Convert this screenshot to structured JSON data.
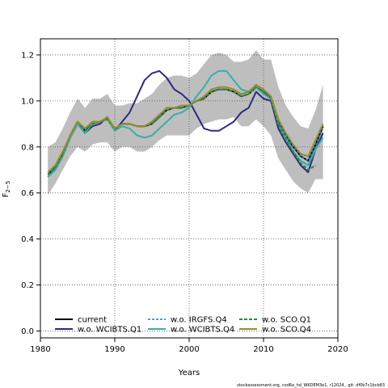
{
  "chart_data": {
    "type": "line",
    "xlabel": "Years",
    "ylabel": "F",
    "ylabel_sub": "2−5",
    "xlim": [
      1980,
      2020
    ],
    "ylim": [
      -0.03,
      1.27
    ],
    "x_ticks": [
      1980,
      1990,
      2000,
      2010,
      2020
    ],
    "y_ticks": [
      "0.0",
      "0.2",
      "0.4",
      "0.6",
      "0.8",
      "1.0",
      "1.2"
    ],
    "grid": true,
    "legend_position": "bottom-left, three columns",
    "footer": "stockassessment.org, cod6a_hd_WKDEM3e1, r12024 , git: df0b7c1bcb83",
    "band": {
      "x": [
        1981,
        1982,
        1983,
        1984,
        1985,
        1986,
        1987,
        1988,
        1989,
        1990,
        1991,
        1992,
        1993,
        1994,
        1995,
        1996,
        1997,
        1998,
        1999,
        2000,
        2001,
        2002,
        2003,
        2004,
        2005,
        2006,
        2007,
        2008,
        2009,
        2010,
        2011,
        2012,
        2013,
        2014,
        2015,
        2016,
        2017,
        2018
      ],
      "upper": [
        0.8,
        0.82,
        0.88,
        0.95,
        1.01,
        0.97,
        1.01,
        1.01,
        1.03,
        0.98,
        0.98,
        0.99,
        0.99,
        1.01,
        1.03,
        1.07,
        1.1,
        1.11,
        1.11,
        1.1,
        1.12,
        1.16,
        1.2,
        1.21,
        1.2,
        1.17,
        1.17,
        1.18,
        1.22,
        1.18,
        1.18,
        1.06,
        0.98,
        0.93,
        0.89,
        0.88,
        0.96,
        1.07
      ],
      "lower": [
        0.59,
        0.64,
        0.7,
        0.76,
        0.8,
        0.78,
        0.81,
        0.82,
        0.82,
        0.78,
        0.8,
        0.8,
        0.78,
        0.78,
        0.8,
        0.83,
        0.85,
        0.85,
        0.85,
        0.85,
        0.88,
        0.9,
        0.91,
        0.92,
        0.92,
        0.93,
        0.89,
        0.89,
        0.92,
        0.89,
        0.85,
        0.75,
        0.7,
        0.65,
        0.62,
        0.6,
        0.66,
        0.66
      ]
    },
    "series": [
      {
        "name": "current",
        "color": "#000000",
        "width": 2,
        "dash": "",
        "x": [
          1981,
          1982,
          1983,
          1984,
          1985,
          1986,
          1987,
          1988,
          1989,
          1990,
          1991,
          1992,
          1993,
          1994,
          1995,
          1996,
          1997,
          1998,
          1999,
          2000,
          2001,
          2002,
          2003,
          2004,
          2005,
          2006,
          2007,
          2008,
          2009,
          2010,
          2011,
          2012,
          2013,
          2014,
          2015,
          2016,
          2017,
          2018
        ],
        "values": [
          0.68,
          0.71,
          0.77,
          0.85,
          0.91,
          0.87,
          0.9,
          0.91,
          0.92,
          0.88,
          0.9,
          0.9,
          0.89,
          0.89,
          0.9,
          0.93,
          0.96,
          0.97,
          0.97,
          0.98,
          1.0,
          1.01,
          1.04,
          1.05,
          1.05,
          1.04,
          1.02,
          1.03,
          1.06,
          1.04,
          1.01,
          0.91,
          0.85,
          0.8,
          0.76,
          0.74,
          0.81,
          0.89
        ]
      },
      {
        "name": "w.o. WCIBTS.Q1",
        "color": "#2b2a84",
        "width": 2,
        "dash": "",
        "x": [
          1981,
          1982,
          1983,
          1984,
          1985,
          1986,
          1987,
          1988,
          1989,
          1990,
          1991,
          1992,
          1993,
          1994,
          1995,
          1996,
          1997,
          1998,
          1999,
          2000,
          2001,
          2002,
          2003,
          2004,
          2005,
          2006,
          2007,
          2008,
          2009,
          2010,
          2011,
          2012,
          2013,
          2014,
          2015,
          2016,
          2017,
          2018
        ],
        "values": [
          0.67,
          0.7,
          0.76,
          0.84,
          0.9,
          0.86,
          0.89,
          0.9,
          0.93,
          0.87,
          0.91,
          0.95,
          1.02,
          1.09,
          1.12,
          1.13,
          1.1,
          1.05,
          1.03,
          1.0,
          0.94,
          0.88,
          0.87,
          0.87,
          0.89,
          0.91,
          0.95,
          0.97,
          1.04,
          1.01,
          1.0,
          0.88,
          0.82,
          0.77,
          0.72,
          0.69,
          0.79,
          0.86
        ]
      },
      {
        "name": "w.o. IRGFS.Q4",
        "color": "#2c72c0",
        "width": 1.5,
        "dash": "3,2",
        "x": [
          1981,
          1982,
          1983,
          1984,
          1985,
          1986,
          1987,
          1988,
          1989,
          1990,
          1991,
          1992,
          1993,
          1994,
          1995,
          1996,
          1997,
          1998,
          1999,
          2000,
          2001,
          2002,
          2003,
          2004,
          2005,
          2006,
          2007,
          2008,
          2009,
          2010,
          2011,
          2012,
          2013,
          2014,
          2015,
          2016,
          2017,
          2018
        ],
        "values": [
          0.68,
          0.71,
          0.77,
          0.85,
          0.91,
          0.87,
          0.9,
          0.91,
          0.92,
          0.88,
          0.9,
          0.9,
          0.89,
          0.89,
          0.9,
          0.93,
          0.96,
          0.97,
          0.97,
          0.98,
          1.0,
          1.01,
          1.04,
          1.05,
          1.05,
          1.04,
          1.02,
          1.03,
          1.06,
          1.04,
          1.01,
          0.91,
          0.85,
          0.8,
          0.76,
          0.74,
          0.81,
          0.89
        ]
      },
      {
        "name": "w.o. WCIBTS.Q4",
        "color": "#35b0a6",
        "width": 2,
        "dash": "",
        "x": [
          1981,
          1982,
          1983,
          1984,
          1985,
          1986,
          1987,
          1988,
          1989,
          1990,
          1991,
          1992,
          1993,
          1994,
          1995,
          1996,
          1997,
          1998,
          1999,
          2000,
          2001,
          2002,
          2003,
          2004,
          2005,
          2006,
          2007,
          2008,
          2009,
          2010,
          2011,
          2012,
          2013,
          2014,
          2015,
          2016,
          2017,
          2018
        ],
        "values": [
          0.67,
          0.7,
          0.76,
          0.84,
          0.9,
          0.86,
          0.9,
          0.91,
          0.92,
          0.87,
          0.89,
          0.88,
          0.85,
          0.84,
          0.85,
          0.88,
          0.91,
          0.94,
          0.95,
          0.97,
          1.02,
          1.06,
          1.11,
          1.13,
          1.13,
          1.09,
          1.05,
          1.04,
          1.06,
          1.03,
          1.01,
          0.9,
          0.84,
          0.78,
          0.74,
          0.72,
          0.79,
          0.84
        ]
      },
      {
        "name": "w.o. SCO.Q1",
        "color": "#2a8a3a",
        "width": 2,
        "dash": "4,2",
        "x": [
          1981,
          1982,
          1983,
          1984,
          1985,
          1986,
          1987,
          1988,
          1989,
          1990,
          1991,
          1992,
          1993,
          1994,
          1995,
          1996,
          1997,
          1998,
          1999,
          2000,
          2001,
          2002,
          2003,
          2004,
          2005,
          2006,
          2007,
          2008,
          2009,
          2010,
          2011,
          2012,
          2013,
          2014,
          2015,
          2016,
          2017
        ],
        "values": [
          0.68,
          0.71,
          0.77,
          0.85,
          0.91,
          0.87,
          0.9,
          0.91,
          0.92,
          0.88,
          0.9,
          0.9,
          0.89,
          0.89,
          0.9,
          0.93,
          0.96,
          0.97,
          0.97,
          0.98,
          1.0,
          1.01,
          1.04,
          1.05,
          1.05,
          1.04,
          1.02,
          1.03,
          1.06,
          1.04,
          1.01,
          0.9,
          0.83,
          0.78,
          0.73,
          0.7,
          0.72
        ]
      },
      {
        "name": "w.o. SCO.Q4",
        "color": "#9c8a2a",
        "width": 2,
        "dash": "",
        "x": [
          1981,
          1982,
          1983,
          1984,
          1985,
          1986,
          1987,
          1988,
          1989,
          1990,
          1991,
          1992,
          1993,
          1994,
          1995,
          1996,
          1997,
          1998,
          1999,
          2000,
          2001,
          2002,
          2003,
          2004,
          2005,
          2006,
          2007,
          2008,
          2009,
          2010,
          2011,
          2012,
          2013,
          2014,
          2015,
          2016,
          2017,
          2018
        ],
        "values": [
          0.69,
          0.72,
          0.78,
          0.85,
          0.91,
          0.88,
          0.91,
          0.91,
          0.93,
          0.88,
          0.9,
          0.9,
          0.89,
          0.89,
          0.91,
          0.94,
          0.97,
          0.97,
          0.98,
          0.98,
          1.0,
          1.02,
          1.05,
          1.06,
          1.06,
          1.05,
          1.03,
          1.04,
          1.07,
          1.05,
          1.02,
          0.92,
          0.86,
          0.81,
          0.77,
          0.76,
          0.83,
          0.9
        ]
      }
    ]
  }
}
